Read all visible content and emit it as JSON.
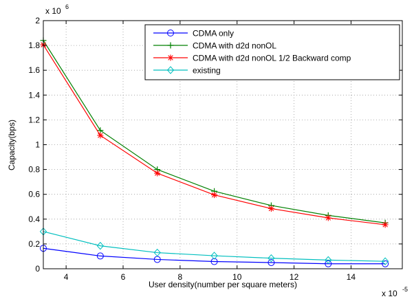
{
  "chart_data": {
    "type": "line",
    "title": "",
    "xlabel": "User density(number per square meters)",
    "ylabel": "Capacity(bps)",
    "x_multiplier": "x 10",
    "x_exponent": "-5",
    "y_multiplier": "x 10",
    "y_exponent": "6",
    "xlim": [
      3.2,
      15.8
    ],
    "ylim": [
      0,
      2
    ],
    "xticks": [
      4,
      6,
      8,
      10,
      12,
      14
    ],
    "xtick_labels": [
      "4",
      "6",
      "8",
      "10",
      "12",
      "14"
    ],
    "yticks": [
      0,
      0.2,
      0.4,
      0.6,
      0.8,
      1,
      1.2,
      1.4,
      1.6,
      1.8,
      2
    ],
    "ytick_labels": [
      "0",
      "0.2",
      "0.4",
      "0.6",
      "0.8",
      "1",
      "1.2",
      "1.4",
      "1.6",
      "1.8",
      "2"
    ],
    "grid": "dotted",
    "legend_position": "top-right",
    "x": [
      3.2,
      5.2,
      7.2,
      9.2,
      11.2,
      13.2,
      15.2
    ],
    "series": [
      {
        "name": "CDMA only",
        "color": "#0000ff",
        "marker": "circle",
        "values": [
          0.165,
          0.103,
          0.075,
          0.058,
          0.05,
          0.04,
          0.04
        ]
      },
      {
        "name": "CDMA with d2d nonOL",
        "color": "#008000",
        "marker": "plus",
        "values": [
          1.84,
          1.115,
          0.8,
          0.625,
          0.51,
          0.43,
          0.37
        ]
      },
      {
        "name": "CDMA with d2d nonOL 1/2 Backward comp",
        "color": "#ff0000",
        "marker": "star",
        "values": [
          1.805,
          1.075,
          0.77,
          0.595,
          0.485,
          0.41,
          0.355
        ]
      },
      {
        "name": "existing",
        "color": "#00bfbf",
        "marker": "diamond",
        "values": [
          0.3,
          0.185,
          0.13,
          0.105,
          0.085,
          0.07,
          0.06
        ]
      }
    ]
  }
}
